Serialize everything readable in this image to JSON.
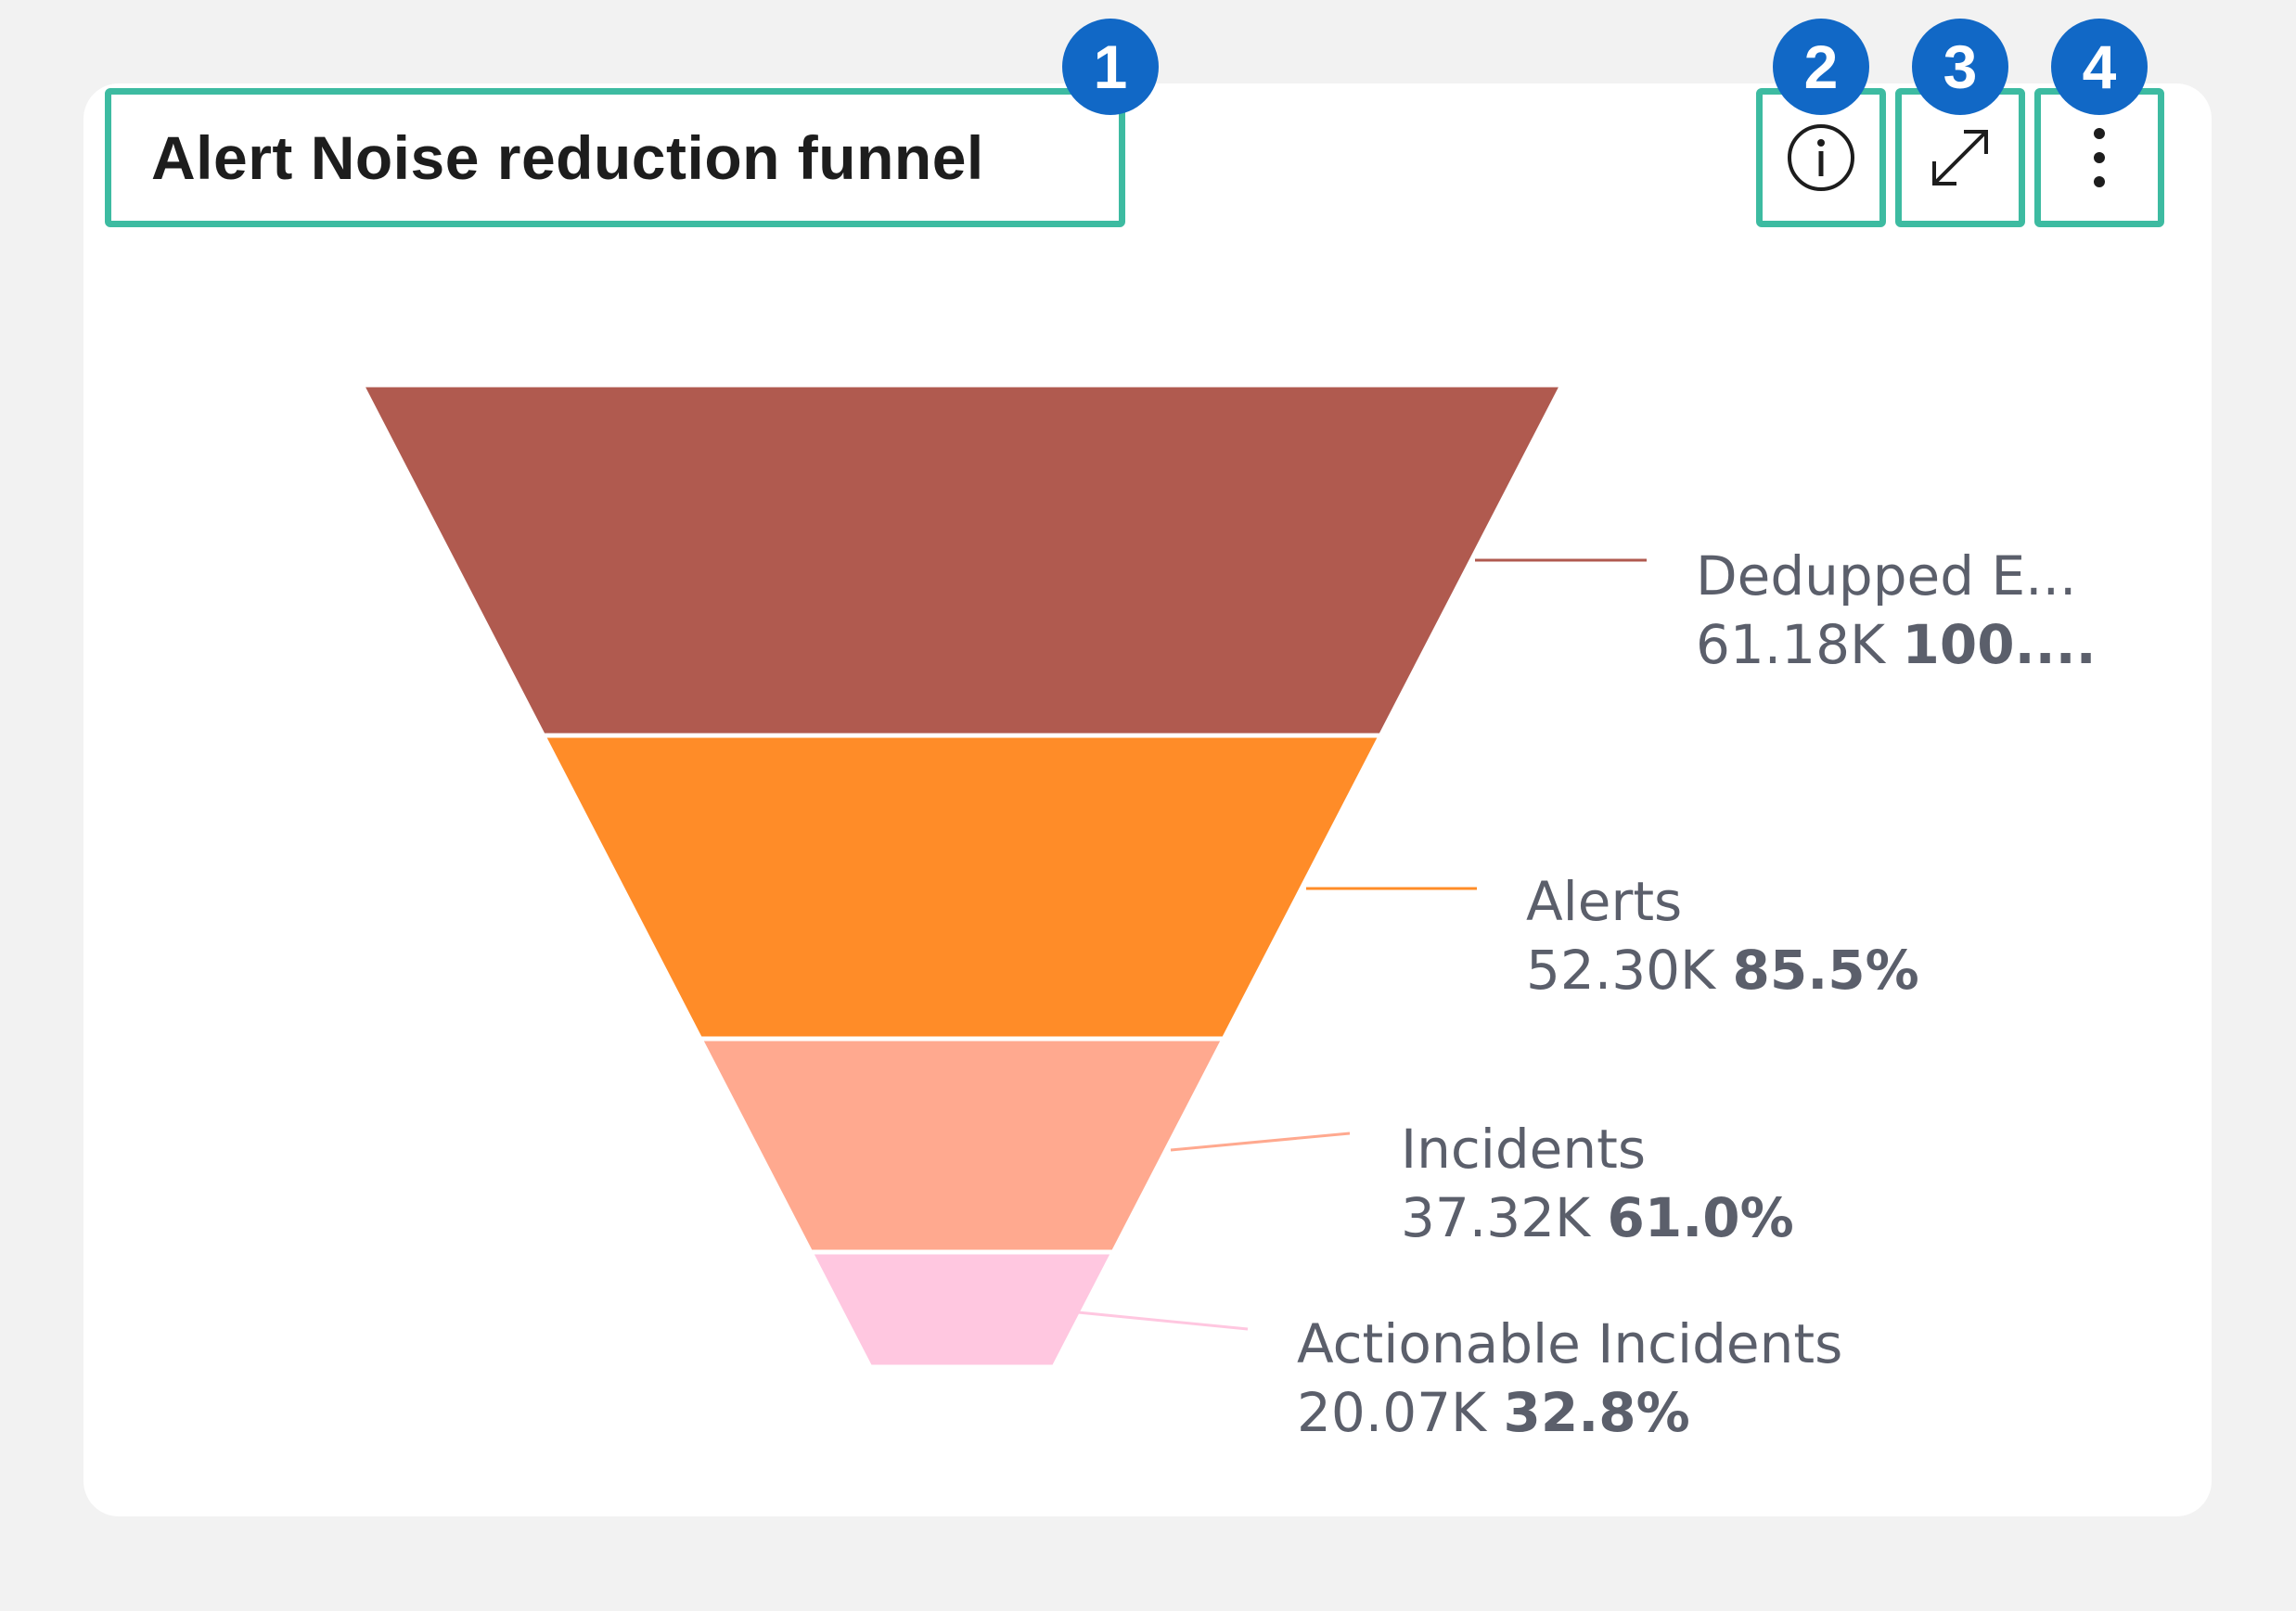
{
  "widget": {
    "title": "Alert Noise reduction funnel",
    "callouts": [
      "1",
      "2",
      "3",
      "4"
    ],
    "icons": {
      "info": "info-circle-icon",
      "expand": "expand-diagonal-arrows-icon",
      "more": "more-vertical-dots-icon"
    }
  },
  "chart_data": {
    "type": "funnel",
    "stages": [
      {
        "name": "Dedupped E...",
        "value": 61180,
        "value_label": "61.18K",
        "percent_label": "100....",
        "percent": 100.0,
        "color": "#b05a4f"
      },
      {
        "name": "Alerts",
        "value": 52300,
        "value_label": "52.30K",
        "percent_label": "85.5%",
        "percent": 85.5,
        "color": "#ff8c28"
      },
      {
        "name": "Incidents",
        "value": 37320,
        "value_label": "37.32K",
        "percent_label": "61.0%",
        "percent": 61.0,
        "color": "#ffa98f"
      },
      {
        "name": "Actionable Incidents",
        "value": 20070,
        "value_label": "20.07K",
        "percent_label": "32.8%",
        "percent": 32.8,
        "color": "#ffc7e0"
      }
    ]
  },
  "colors": {
    "highlight": "#3dbba1",
    "callout": "#1168c6",
    "label_text": "#5b5f6b"
  }
}
